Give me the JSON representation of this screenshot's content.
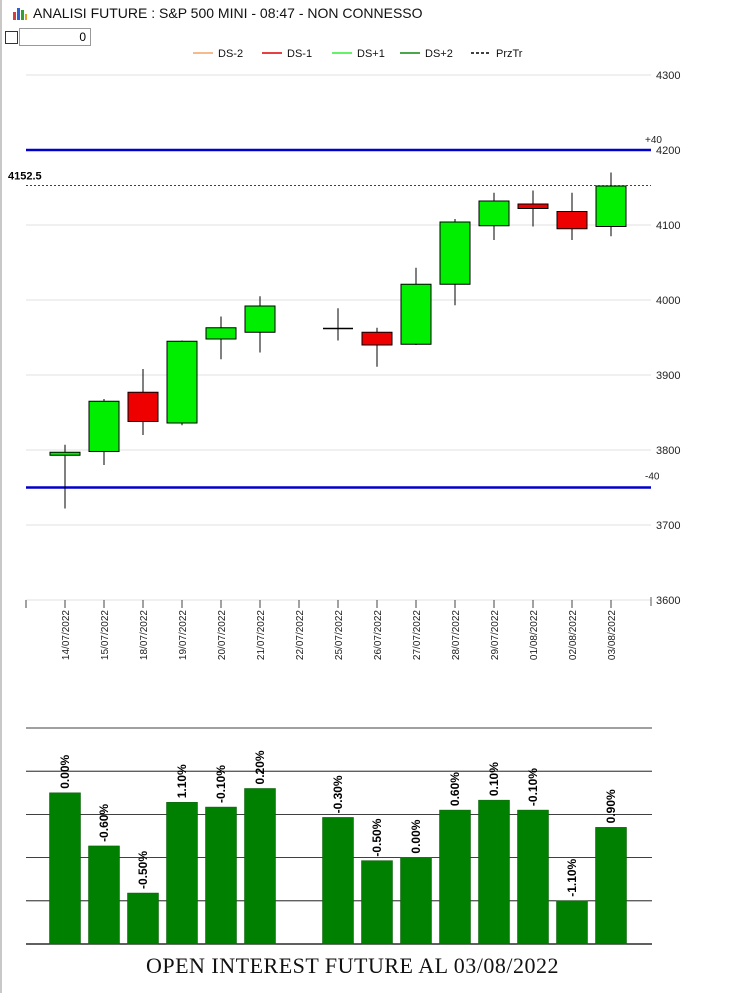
{
  "window": {
    "title": "ANALISI FUTURE : S&P 500 MINI - 08:47 - NON CONNESSO",
    "icon": "bar-chart-icon"
  },
  "toolbar": {
    "checkbox_checked": false,
    "input_value": "0"
  },
  "colors": {
    "up": "#00ee00",
    "down": "#ee0000",
    "band": "#0000cc",
    "volume": "#008000",
    "ds_minus2": "#f4a46a",
    "ds_minus1": "#dd0000",
    "ds_plus1": "#33ee33",
    "ds_plus2": "#118811"
  },
  "chart_data": [
    {
      "type": "candlestick",
      "legend": {
        "placement": "top-center",
        "entries": [
          "DS-2",
          "DS-1",
          "DS+1",
          "DS+2",
          "PrzTr"
        ]
      },
      "ylim": [
        3600,
        4300
      ],
      "yticks": [
        3600,
        3700,
        3800,
        3900,
        4000,
        4100,
        4200,
        4300
      ],
      "grid": true,
      "last_price_label": "4152.5",
      "last_price": 4152.5,
      "upper_band": 4200,
      "upper_band_label": "+40",
      "lower_band": 3750,
      "lower_band_label": "-40",
      "candles": [
        {
          "date": "14/07/2022",
          "open": 3793,
          "high": 3807,
          "low": 3722,
          "close": 3797
        },
        {
          "date": "15/07/2022",
          "open": 3798,
          "high": 3868,
          "low": 3780,
          "close": 3865
        },
        {
          "date": "18/07/2022",
          "open": 3877,
          "high": 3908,
          "low": 3820,
          "close": 3838
        },
        {
          "date": "19/07/2022",
          "open": 3836,
          "high": 3946,
          "low": 3833,
          "close": 3945
        },
        {
          "date": "20/07/2022",
          "open": 3948,
          "high": 3978,
          "low": 3921,
          "close": 3963
        },
        {
          "date": "21/07/2022",
          "open": 3957,
          "high": 4005,
          "low": 3930,
          "close": 3992
        },
        {
          "date": "22/07/2022",
          "open": null,
          "high": null,
          "low": null,
          "close": null
        },
        {
          "date": "25/07/2022",
          "open": 3962,
          "high": 3989,
          "low": 3946,
          "close": 3962
        },
        {
          "date": "26/07/2022",
          "open": 3957,
          "high": 3963,
          "low": 3911,
          "close": 3940
        },
        {
          "date": "27/07/2022",
          "open": 3941,
          "high": 4043,
          "low": 3940,
          "close": 4021
        },
        {
          "date": "28/07/2022",
          "open": 4021,
          "high": 4108,
          "low": 3993,
          "close": 4104
        },
        {
          "date": "29/07/2022",
          "open": 4099,
          "high": 4143,
          "low": 4080,
          "close": 4132
        },
        {
          "date": "01/08/2022",
          "open": 4128,
          "high": 4146,
          "low": 4098,
          "close": 4122
        },
        {
          "date": "02/08/2022",
          "open": 4118,
          "high": 4143,
          "low": 4080,
          "close": 4095
        },
        {
          "date": "03/08/2022",
          "open": 4098,
          "high": 4170,
          "low": 4085,
          "close": 4152
        }
      ]
    },
    {
      "type": "bar",
      "title": "OPEN INTEREST FUTURE AL 03/08/2022",
      "ylim": [
        0,
        5
      ],
      "gridlines": 5,
      "categories": [
        "14/07/2022",
        "15/07/2022",
        "18/07/2022",
        "19/07/2022",
        "20/07/2022",
        "21/07/2022",
        "22/07/2022",
        "25/07/2022",
        "26/07/2022",
        "27/07/2022",
        "28/07/2022",
        "29/07/2022",
        "01/08/2022",
        "02/08/2022",
        "03/08/2022"
      ],
      "values": [
        3.5,
        2.27,
        1.18,
        3.28,
        3.17,
        3.6,
        null,
        2.93,
        1.93,
        2.0,
        3.1,
        3.33,
        3.1,
        1.0,
        2.7
      ],
      "labels": [
        "0.00%",
        "-0.60%",
        "-0.50%",
        "1.10%",
        "-0.10%",
        "0.20%",
        "",
        "-0.30%",
        "-0.50%",
        "0.00%",
        "0.60%",
        "0.10%",
        "-0.10%",
        "-1.10%",
        "0.90%"
      ]
    }
  ]
}
